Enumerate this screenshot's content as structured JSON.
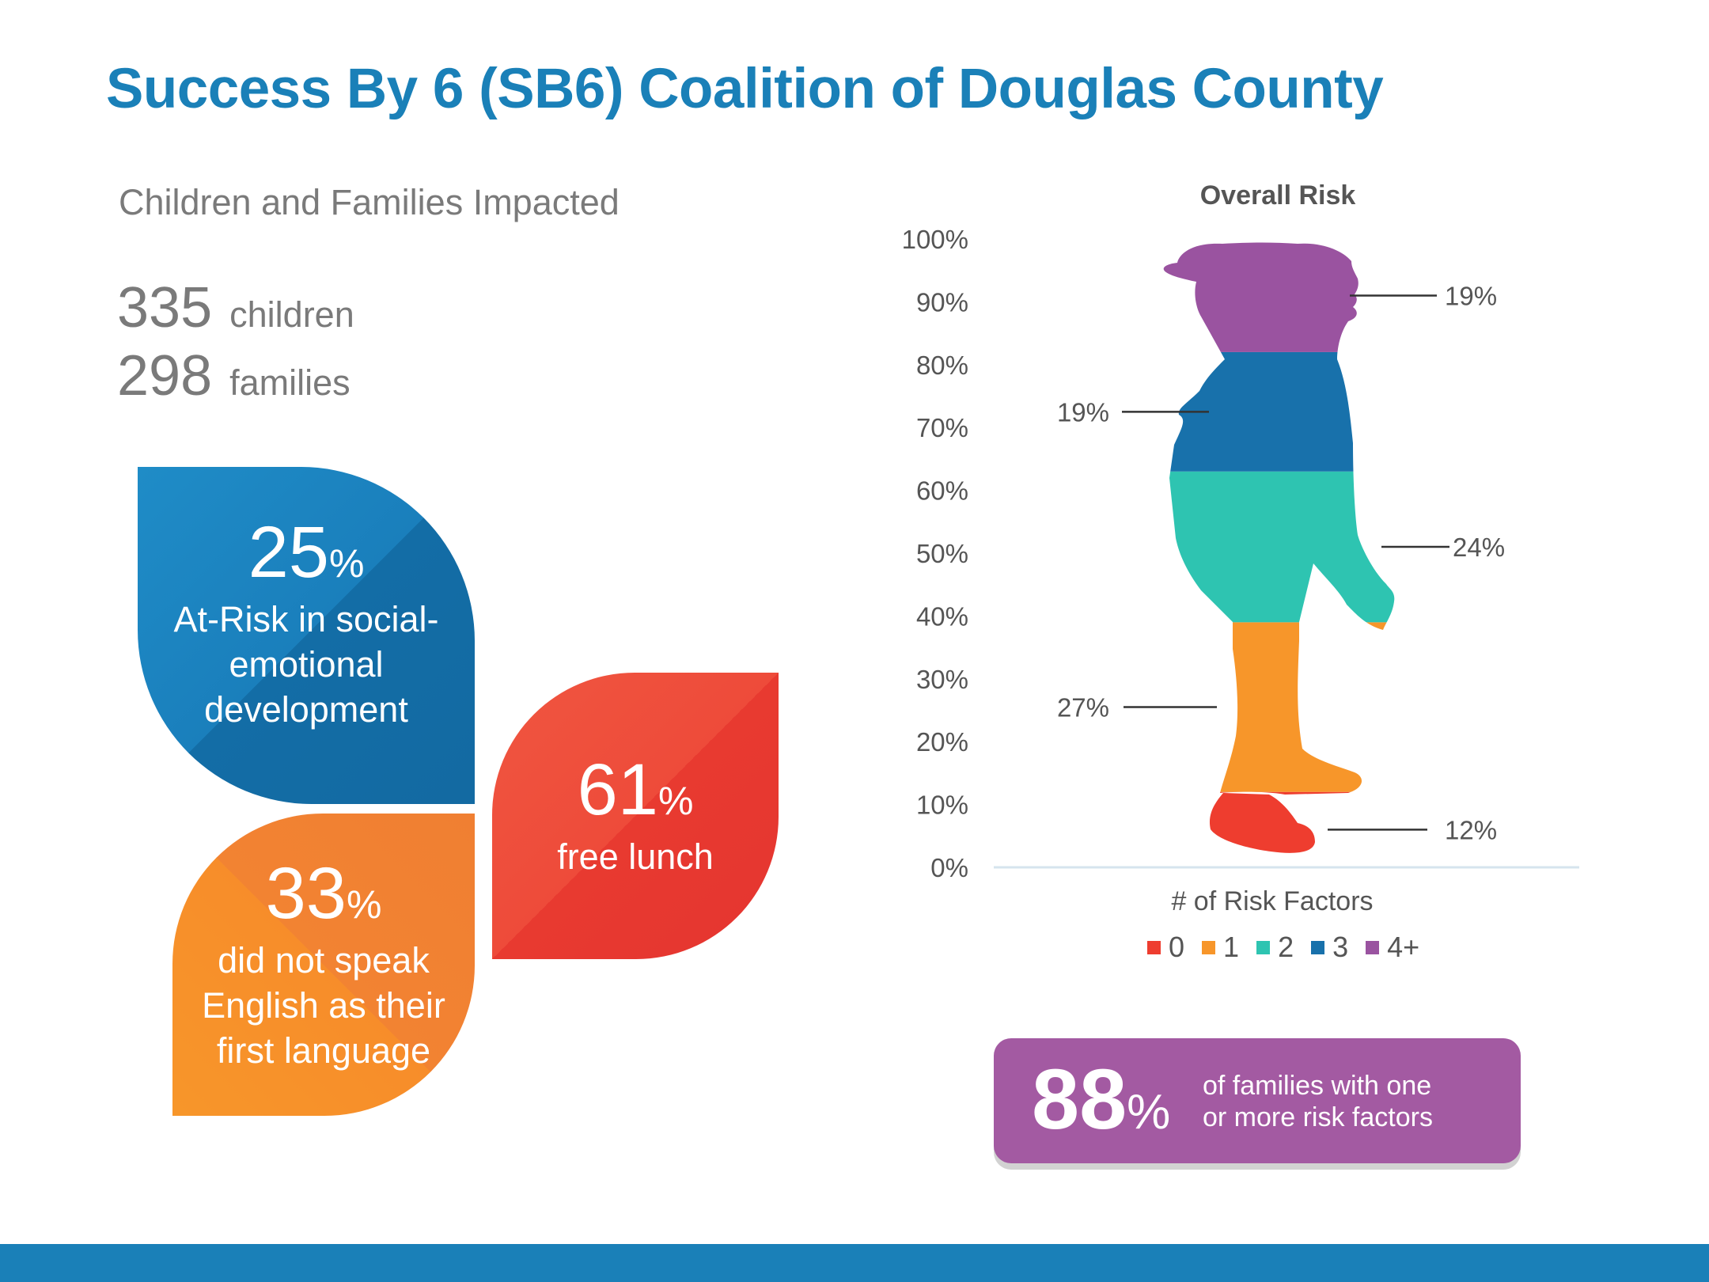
{
  "title": "Success By 6 (SB6) Coalition of Douglas County",
  "impact": {
    "heading": "Children and Families Impacted",
    "children_count": "335",
    "children_label": "children",
    "families_count": "298",
    "families_label": "families"
  },
  "leaves": {
    "social": {
      "value": "25",
      "unit": "%",
      "lines": [
        "At-Risk in social-",
        "emotional",
        "development"
      ]
    },
    "lunch": {
      "value": "61",
      "unit": "%",
      "lines": [
        "free lunch"
      ]
    },
    "english": {
      "value": "33",
      "unit": "%",
      "lines": [
        "did not speak",
        "English as their",
        "first language"
      ]
    }
  },
  "colors": {
    "blue": "#1a80b8",
    "red": "#ee3d2f",
    "orange": "#f7962a",
    "teal": "#2ec4b1",
    "purple": "#a35aa2"
  },
  "chart_data": {
    "type": "bar",
    "stacked": true,
    "title": "Overall Risk",
    "xlabel": "# of Risk Factors",
    "ylabel": "",
    "ylim": [
      0,
      100
    ],
    "yticks": [
      "0%",
      "10%",
      "20%",
      "30%",
      "40%",
      "50%",
      "60%",
      "70%",
      "80%",
      "90%",
      "100%"
    ],
    "series": [
      {
        "name": "0",
        "value": 12,
        "label": "12%",
        "color": "#ee3d2f"
      },
      {
        "name": "1",
        "value": 27,
        "label": "27%",
        "color": "#f7962a"
      },
      {
        "name": "2",
        "value": 24,
        "label": "24%",
        "color": "#2ec4b1"
      },
      {
        "name": "3",
        "value": 19,
        "label": "19%",
        "color": "#1871ab"
      },
      {
        "name": "4+",
        "value": 19,
        "label": "19%",
        "color": "#9a53a0"
      }
    ],
    "legend_position": "bottom"
  },
  "callout": {
    "value": "88",
    "unit": "%",
    "line1": "of families with one",
    "line2": "or more risk factors"
  }
}
